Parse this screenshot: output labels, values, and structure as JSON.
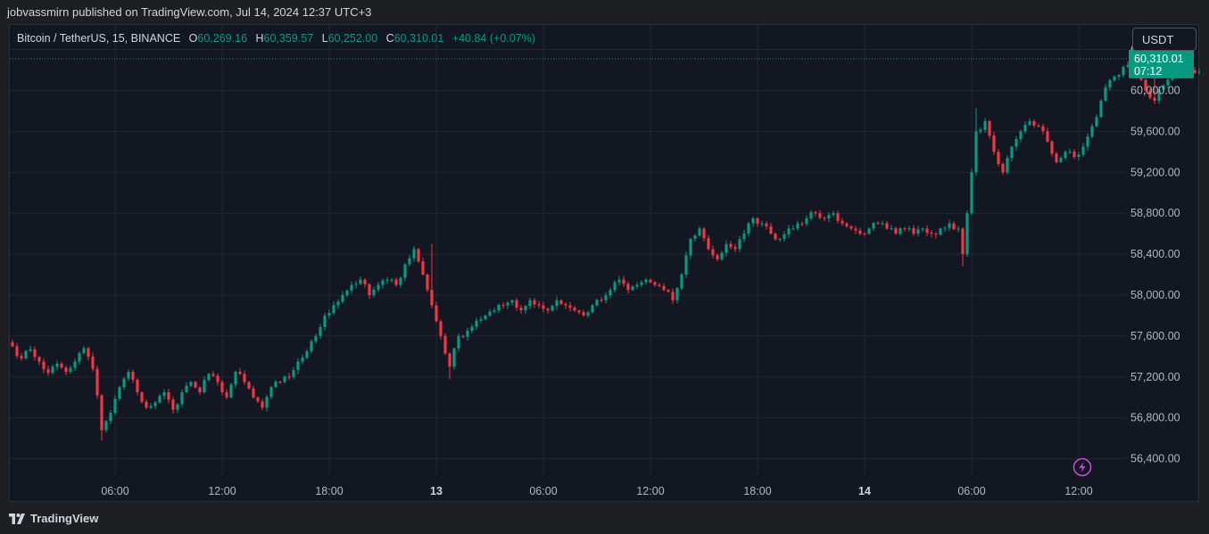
{
  "publication": "jobvassmirn published on TradingView.com, Jul 14, 2024 12:37 UTC+3",
  "legend": {
    "symbol": "Bitcoin / TetherUS, 15, BINANCE",
    "o_label": "O",
    "o_value": "60,269.16",
    "h_label": "H",
    "h_value": "60,359.57",
    "l_label": "L",
    "l_value": "60,252.00",
    "c_label": "C",
    "c_value": "60,310.01",
    "change": "+40.84 (+0.07%)"
  },
  "currency_button": "USDT",
  "last_price": {
    "value": 60310.01,
    "label": "60,310.01",
    "countdown": "07:12",
    "color": "#089981"
  },
  "footer": {
    "brand": "TradingView",
    "icon": "tradingview-logo-icon"
  },
  "alert_icon": "lightning-icon",
  "colors": {
    "up": "#089981",
    "down": "#f23645",
    "grid": "#232632",
    "text": "#b2b5be"
  },
  "chart_data": {
    "type": "candlestick",
    "title": "",
    "xlabel": "",
    "ylabel": "",
    "ylim": [
      56240,
      60640
    ],
    "y_ticks": [
      {
        "v": 56400,
        "label": "56,400.00"
      },
      {
        "v": 56800,
        "label": "56,800.00"
      },
      {
        "v": 57200,
        "label": "57,200.00"
      },
      {
        "v": 57600,
        "label": "57,600.00"
      },
      {
        "v": 58000,
        "label": "58,000.00"
      },
      {
        "v": 58400,
        "label": "58,400.00"
      },
      {
        "v": 58800,
        "label": "58,800.00"
      },
      {
        "v": 59200,
        "label": "59,200.00"
      },
      {
        "v": 59600,
        "label": "59,600.00"
      },
      {
        "v": 60000,
        "label": "60,000.00"
      },
      {
        "v": 60400,
        "label": "60,400.00"
      }
    ],
    "x_ticks": [
      {
        "t": "2024-07-12 06:00",
        "label": "06:00",
        "bold": false
      },
      {
        "t": "2024-07-12 12:00",
        "label": "12:00",
        "bold": false
      },
      {
        "t": "2024-07-12 18:00",
        "label": "18:00",
        "bold": false
      },
      {
        "t": "2024-07-13 00:00",
        "label": "13",
        "bold": true
      },
      {
        "t": "2024-07-13 06:00",
        "label": "06:00",
        "bold": false
      },
      {
        "t": "2024-07-13 12:00",
        "label": "12:00",
        "bold": false
      },
      {
        "t": "2024-07-13 18:00",
        "label": "18:00",
        "bold": false
      },
      {
        "t": "2024-07-14 00:00",
        "label": "14",
        "bold": true
      },
      {
        "t": "2024-07-14 06:00",
        "label": "06:00",
        "bold": false
      },
      {
        "t": "2024-07-14 12:00",
        "label": "12:00",
        "bold": false
      }
    ],
    "x_start": "2024-07-12 00:15",
    "interval_minutes": 15,
    "close_path": [
      [
        0,
        57500
      ],
      [
        2,
        57380
      ],
      [
        4,
        57470
      ],
      [
        6,
        57350
      ],
      [
        8,
        57240
      ],
      [
        10,
        57330
      ],
      [
        12,
        57250
      ],
      [
        14,
        57350
      ],
      [
        16,
        57480
      ],
      [
        18,
        57280
      ],
      [
        19,
        57020
      ],
      [
        20,
        56680
      ],
      [
        22,
        56850
      ],
      [
        24,
        57100
      ],
      [
        26,
        57250
      ],
      [
        28,
        57050
      ],
      [
        30,
        56900
      ],
      [
        32,
        56950
      ],
      [
        34,
        57050
      ],
      [
        36,
        56880
      ],
      [
        38,
        57050
      ],
      [
        40,
        57150
      ],
      [
        42,
        57050
      ],
      [
        44,
        57230
      ],
      [
        46,
        57150
      ],
      [
        48,
        57000
      ],
      [
        50,
        57250
      ],
      [
        52,
        57150
      ],
      [
        54,
        57000
      ],
      [
        56,
        56900
      ],
      [
        58,
        57100
      ],
      [
        60,
        57150
      ],
      [
        62,
        57200
      ],
      [
        64,
        57350
      ],
      [
        66,
        57450
      ],
      [
        68,
        57600
      ],
      [
        70,
        57800
      ],
      [
        72,
        57900
      ],
      [
        74,
        58000
      ],
      [
        76,
        58100
      ],
      [
        78,
        58150
      ],
      [
        80,
        58000
      ],
      [
        82,
        58100
      ],
      [
        84,
        58150
      ],
      [
        86,
        58100
      ],
      [
        88,
        58300
      ],
      [
        90,
        58450
      ],
      [
        92,
        58200
      ],
      [
        94,
        57900
      ],
      [
        96,
        57600
      ],
      [
        98,
        57300
      ],
      [
        100,
        57600
      ],
      [
        102,
        57650
      ],
      [
        104,
        57750
      ],
      [
        106,
        57800
      ],
      [
        108,
        57850
      ],
      [
        110,
        57900
      ],
      [
        112,
        57950
      ],
      [
        114,
        57850
      ],
      [
        116,
        57950
      ],
      [
        118,
        57900
      ],
      [
        120,
        57850
      ],
      [
        122,
        57950
      ],
      [
        124,
        57900
      ],
      [
        126,
        57850
      ],
      [
        128,
        57800
      ],
      [
        130,
        57900
      ],
      [
        132,
        57950
      ],
      [
        134,
        58050
      ],
      [
        136,
        58150
      ],
      [
        138,
        58050
      ],
      [
        140,
        58100
      ],
      [
        142,
        58150
      ],
      [
        144,
        58100
      ],
      [
        146,
        58050
      ],
      [
        148,
        57950
      ],
      [
        150,
        58200
      ],
      [
        152,
        58550
      ],
      [
        154,
        58650
      ],
      [
        156,
        58450
      ],
      [
        158,
        58350
      ],
      [
        160,
        58500
      ],
      [
        162,
        58450
      ],
      [
        164,
        58600
      ],
      [
        166,
        58750
      ],
      [
        168,
        58700
      ],
      [
        170,
        58600
      ],
      [
        172,
        58550
      ],
      [
        174,
        58650
      ],
      [
        176,
        58700
      ],
      [
        178,
        58750
      ],
      [
        180,
        58800
      ],
      [
        182,
        58750
      ],
      [
        184,
        58800
      ],
      [
        186,
        58700
      ],
      [
        188,
        58650
      ],
      [
        190,
        58600
      ],
      [
        192,
        58650
      ],
      [
        194,
        58700
      ],
      [
        196,
        58650
      ],
      [
        198,
        58600
      ],
      [
        200,
        58650
      ],
      [
        202,
        58600
      ],
      [
        204,
        58650
      ],
      [
        206,
        58600
      ],
      [
        208,
        58650
      ],
      [
        210,
        58700
      ],
      [
        212,
        58650
      ],
      [
        213,
        58400
      ],
      [
        214,
        58800
      ],
      [
        215,
        59200
      ],
      [
        216,
        59600
      ],
      [
        218,
        59700
      ],
      [
        220,
        59400
      ],
      [
        222,
        59200
      ],
      [
        224,
        59450
      ],
      [
        226,
        59600
      ],
      [
        228,
        59700
      ],
      [
        230,
        59650
      ],
      [
        232,
        59500
      ],
      [
        234,
        59300
      ],
      [
        236,
        59400
      ],
      [
        238,
        59350
      ],
      [
        240,
        59450
      ],
      [
        242,
        59650
      ],
      [
        244,
        59900
      ],
      [
        246,
        60100
      ],
      [
        248,
        60150
      ],
      [
        250,
        60250
      ],
      [
        252,
        60150
      ],
      [
        254,
        60000
      ],
      [
        256,
        59900
      ],
      [
        258,
        60050
      ],
      [
        260,
        60150
      ],
      [
        262,
        60250
      ],
      [
        264,
        60200
      ],
      [
        266,
        60180
      ],
      [
        268,
        60310.01
      ]
    ],
    "wick_spikes": [
      {
        "i": 20,
        "low": 56580
      },
      {
        "i": 94,
        "high": 58500
      },
      {
        "i": 98,
        "low": 57180
      },
      {
        "i": 213,
        "low": 58280
      },
      {
        "i": 216,
        "high": 59830
      },
      {
        "i": 256,
        "high": 60400
      }
    ]
  }
}
